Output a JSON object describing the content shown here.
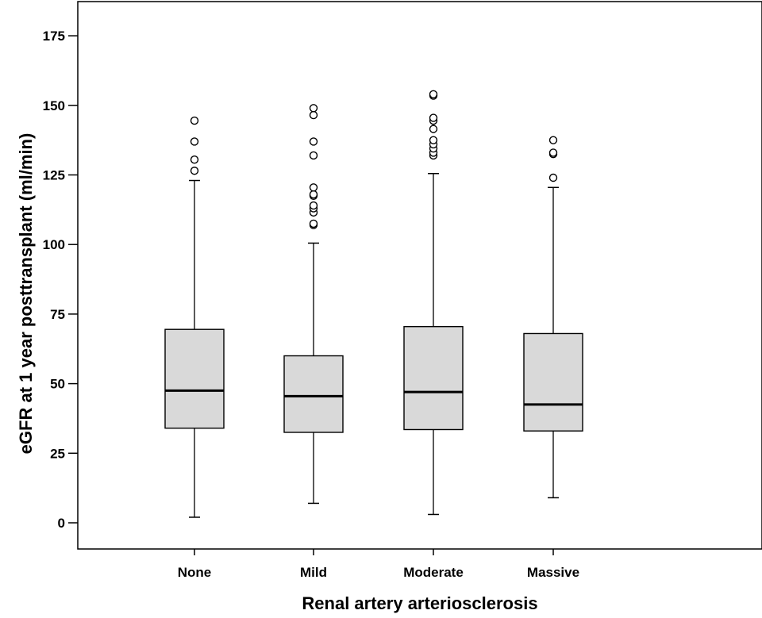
{
  "chart_data": {
    "type": "box",
    "title": "",
    "xlabel": "Renal artery arteriosclerosis",
    "ylabel": "eGFR at 1 year posttransplant (ml/min)",
    "ylim": [
      -10,
      185
    ],
    "yticks": [
      0,
      25,
      50,
      75,
      100,
      125,
      150,
      175
    ],
    "categories": [
      "None",
      "Mild",
      "Moderate",
      "Massive"
    ],
    "box_fill": "#d9d9d9",
    "grid": false,
    "boxes": [
      {
        "name": "None",
        "whisker_low": 2,
        "q1": 34,
        "median": 47.5,
        "q3": 69.5,
        "whisker_high": 123,
        "outliers": [
          126.5,
          130.5,
          137,
          144.5
        ]
      },
      {
        "name": "Mild",
        "whisker_low": 7,
        "q1": 32.5,
        "median": 45.5,
        "q3": 60,
        "whisker_high": 100.5,
        "outliers": [
          107,
          107.5,
          111.5,
          113,
          114,
          117.5,
          118,
          120.5,
          132,
          137,
          146.5,
          149
        ]
      },
      {
        "name": "Moderate",
        "whisker_low": 3,
        "q1": 33.5,
        "median": 47,
        "q3": 70.5,
        "whisker_high": 125.5,
        "outliers": [
          132,
          133,
          134.5,
          136,
          137.5,
          141.5,
          144.5,
          145.5,
          153.5,
          154
        ]
      },
      {
        "name": "Massive",
        "whisker_low": 9,
        "q1": 33,
        "median": 42.5,
        "q3": 68,
        "whisker_high": 120.5,
        "outliers": [
          124,
          132.5,
          133,
          137.5
        ]
      }
    ]
  }
}
